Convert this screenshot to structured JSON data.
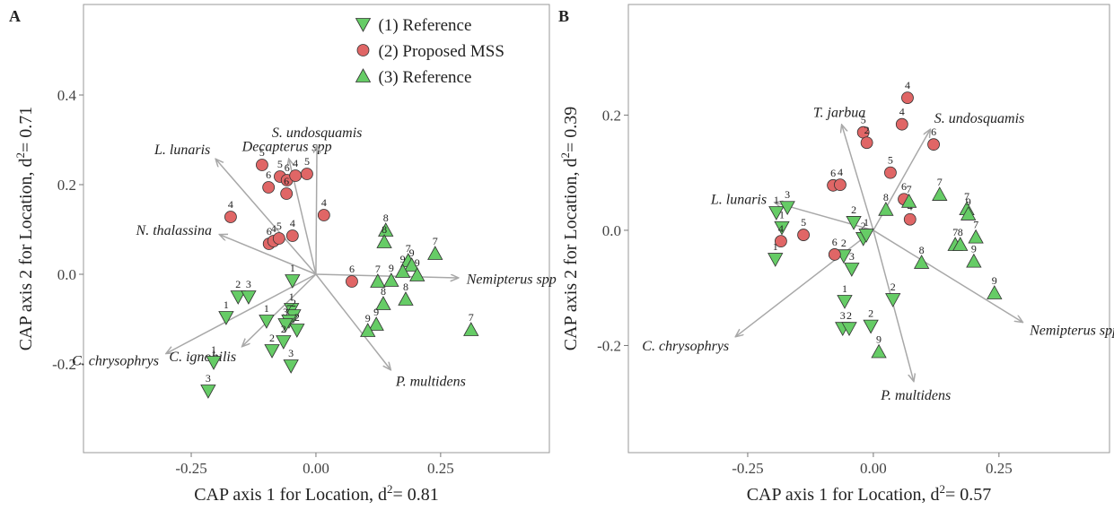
{
  "chart_data": [
    {
      "type": "scatter",
      "panel": "A",
      "xlabel": [
        "CAP axis 1 for Location, d",
        "2",
        "= 0.81"
      ],
      "ylabel": [
        "CAP axis 2 for Location, d",
        "2",
        "= 0.71"
      ],
      "xlim": [
        -0.466,
        0.468
      ],
      "ylim": [
        -0.398,
        0.602
      ],
      "xticks": [
        {
          "value": -0.25,
          "label": "-0.25"
        },
        {
          "value": 0,
          "label": "0.00"
        },
        {
          "value": 0.25,
          "label": "0.25"
        }
      ],
      "yticks": [
        -0.2,
        {
          "value": 0,
          "label": "0.0"
        },
        0.2,
        0.4
      ],
      "legend": "top",
      "series": [
        {
          "name": "(1) Reference",
          "color": "#66cc66",
          "marker": "triangle-down",
          "x": [
            -0.047,
            -0.156,
            -0.135,
            -0.18,
            -0.099,
            -0.049,
            -0.045,
            -0.054,
            -0.038,
            -0.061,
            -0.088,
            -0.065,
            -0.05,
            -0.205,
            -0.216
          ],
          "y": [
            -0.014,
            -0.05,
            -0.05,
            -0.096,
            -0.104,
            -0.078,
            -0.092,
            -0.104,
            -0.124,
            -0.112,
            -0.17,
            -0.15,
            -0.204,
            -0.196,
            -0.26
          ],
          "labels": [
            1,
            2,
            3,
            1,
            1,
            1,
            2,
            7,
            2,
            3,
            2,
            2,
            3,
            1,
            3
          ]
        },
        {
          "name": "(2) Proposed MSS",
          "color": "#e06666",
          "marker": "circle",
          "x": [
            -0.108,
            -0.095,
            -0.072,
            -0.058,
            -0.059,
            -0.041,
            -0.018,
            -0.171,
            0.016,
            -0.094,
            -0.085,
            -0.074,
            -0.047,
            0.072
          ],
          "y": [
            0.244,
            0.194,
            0.218,
            0.21,
            0.18,
            0.22,
            0.224,
            0.128,
            0.132,
            0.068,
            0.074,
            0.08,
            0.086,
            -0.016
          ],
          "labels": [
            5,
            6,
            5,
            6,
            6,
            4,
            5,
            4,
            4,
            6,
            4,
            5,
            4,
            6
          ]
        },
        {
          "name": "(3) Reference",
          "color": "#66cc66",
          "marker": "triangle-up",
          "x": [
            0.14,
            0.137,
            0.185,
            0.192,
            0.174,
            0.203,
            0.239,
            0.124,
            0.151,
            0.135,
            0.18,
            0.121,
            0.104,
            0.311
          ],
          "y": [
            0.098,
            0.072,
            0.03,
            0.02,
            0.006,
            -0.002,
            0.046,
            -0.016,
            -0.014,
            -0.066,
            -0.056,
            -0.112,
            -0.126,
            -0.124
          ],
          "labels": [
            8,
            8,
            7,
            9,
            9,
            9,
            7,
            7,
            9,
            8,
            8,
            9,
            9,
            7
          ]
        }
      ],
      "vectors": [
        {
          "label": "L. lunaris",
          "x": -0.2,
          "y": 0.256
        },
        {
          "label": "Decapterus spp",
          "x": -0.054,
          "y": 0.256
        },
        {
          "label": "S. undosquamis",
          "x": 0.002,
          "y": 0.286
        },
        {
          "label": "N. thalassina",
          "x": -0.192,
          "y": 0.088
        },
        {
          "label": "Nemipterus spp",
          "x": 0.284,
          "y": -0.008
        },
        {
          "label": "P. multidens",
          "x": 0.149,
          "y": -0.212
        },
        {
          "label": "C. chrysophrys",
          "x": -0.299,
          "y": -0.176
        },
        {
          "label": "C. ignobilis",
          "x": -0.147,
          "y": -0.16
        }
      ]
    },
    {
      "type": "scatter",
      "panel": "B",
      "xlabel": [
        "CAP axis 1 for Location, d",
        "2",
        "= 0.57"
      ],
      "ylabel": [
        "CAP axis 2 for Location, d",
        "2",
        "= 0.39"
      ],
      "xlim": [
        -0.4875,
        0.47
      ],
      "ylim": [
        -0.386,
        0.392
      ],
      "xticks": [
        {
          "value": -0.25,
          "label": "-0.25"
        },
        {
          "value": 0,
          "label": "0.00"
        },
        {
          "value": 0.25,
          "label": "0.25"
        }
      ],
      "yticks": [
        -0.2,
        {
          "value": 0,
          "label": "0.0"
        },
        0.2
      ],
      "series": [
        {
          "name": "(1) Reference",
          "color": "#66cc66",
          "marker": "triangle-down",
          "x": [
            -0.193,
            -0.171,
            -0.182,
            -0.195,
            -0.039,
            -0.02,
            -0.014,
            -0.059,
            -0.043,
            -0.057,
            -0.061,
            -0.048,
            -0.005,
            0.039
          ],
          "y": [
            0.031,
            0.04,
            0.005,
            -0.05,
            0.014,
            -0.014,
            -0.008,
            -0.044,
            -0.067,
            -0.123,
            -0.17,
            -0.17,
            -0.166,
            -0.12
          ],
          "labels": [
            1,
            3,
            1,
            1,
            2,
            2,
            1,
            2,
            3,
            1,
            3,
            2,
            2,
            2
          ]
        },
        {
          "name": "(2) Proposed MSS",
          "color": "#e06666",
          "marker": "circle",
          "x": [
            0.068,
            0.057,
            -0.02,
            -0.013,
            0.034,
            0.12,
            -0.08,
            -0.066,
            0.061,
            0.073,
            -0.139,
            -0.184,
            -0.077
          ],
          "y": [
            0.23,
            0.184,
            0.17,
            0.152,
            0.1,
            0.149,
            0.078,
            0.079,
            0.054,
            0.019,
            -0.008,
            -0.019,
            -0.042
          ],
          "labels": [
            4,
            4,
            5,
            2,
            5,
            6,
            6,
            4,
            6,
            4,
            5,
            4,
            6
          ]
        },
        {
          "name": "(3) Reference",
          "color": "#66cc66",
          "marker": "triangle-up",
          "x": [
            0.132,
            0.071,
            0.025,
            0.186,
            0.189,
            0.204,
            0.163,
            0.173,
            0.2,
            0.096,
            0.241,
            0.011
          ],
          "y": [
            0.062,
            0.05,
            0.036,
            0.037,
            0.028,
            -0.012,
            -0.025,
            -0.025,
            -0.054,
            -0.056,
            -0.109,
            -0.211
          ],
          "labels": [
            7,
            7,
            8,
            7,
            9,
            7,
            7,
            8,
            9,
            8,
            9,
            9
          ]
        }
      ],
      "vectors": [
        {
          "label": "T. jarbua",
          "x": -0.0625,
          "y": 0.182
        },
        {
          "label": "S. undosquamis",
          "x": 0.1125,
          "y": 0.174
        },
        {
          "label": "L. lunaris",
          "x": -0.195,
          "y": 0.048
        },
        {
          "label": "C. chrysophrys",
          "x": -0.273,
          "y": -0.184
        },
        {
          "label": "P. multidens",
          "x": 0.08,
          "y": -0.261
        },
        {
          "label": "Nemipterus spp",
          "x": 0.296,
          "y": -0.159
        }
      ]
    }
  ]
}
